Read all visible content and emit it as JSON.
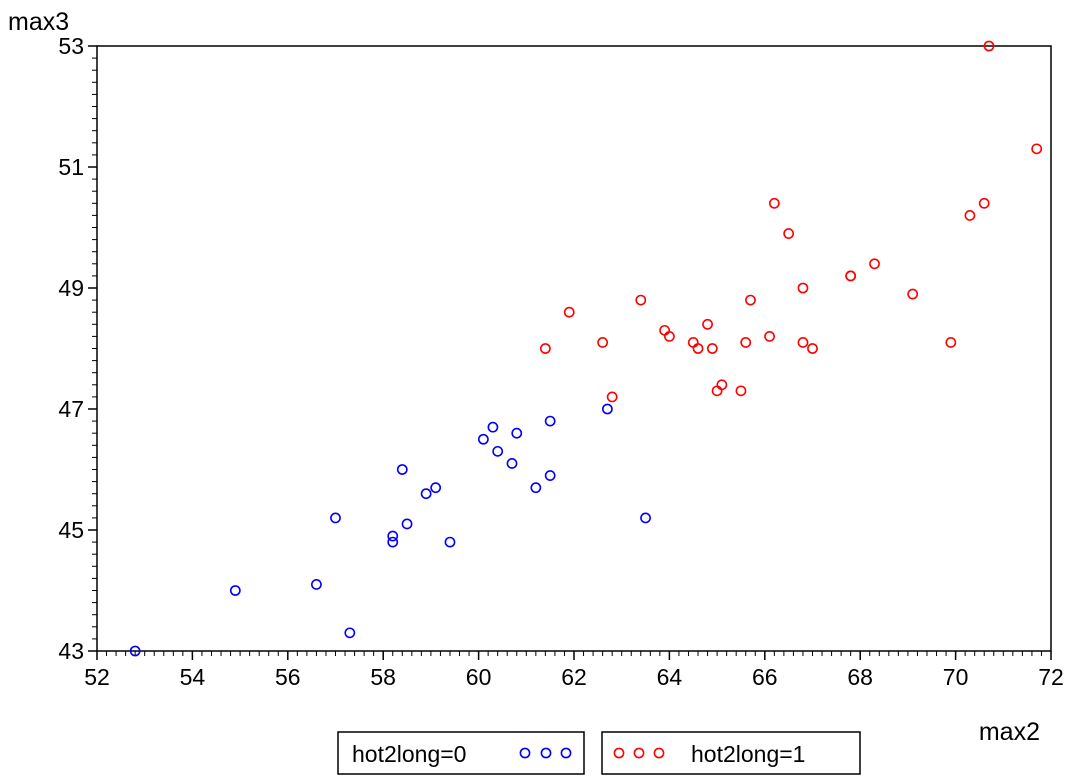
{
  "chart_data": {
    "type": "scatter",
    "xlabel": "max2",
    "ylabel": "max3",
    "xlim": [
      52,
      72
    ],
    "ylim": [
      43,
      53
    ],
    "xticks": [
      52,
      54,
      56,
      58,
      60,
      62,
      64,
      66,
      68,
      70,
      72
    ],
    "yticks": [
      43,
      45,
      47,
      49,
      51,
      53
    ],
    "grid": false,
    "legend_position": "bottom",
    "series": [
      {
        "name": "hot2long=0",
        "color": "#0000ff",
        "marker": "circle",
        "points": [
          [
            52.8,
            43.0
          ],
          [
            54.9,
            44.0
          ],
          [
            56.6,
            44.1
          ],
          [
            57.0,
            45.2
          ],
          [
            57.3,
            43.3
          ],
          [
            58.2,
            44.8
          ],
          [
            58.2,
            44.9
          ],
          [
            58.4,
            46.0
          ],
          [
            58.5,
            45.1
          ],
          [
            58.9,
            45.6
          ],
          [
            59.1,
            45.7
          ],
          [
            59.4,
            44.8
          ],
          [
            60.1,
            46.5
          ],
          [
            60.3,
            46.7
          ],
          [
            60.4,
            46.3
          ],
          [
            60.7,
            46.1
          ],
          [
            60.8,
            46.6
          ],
          [
            61.2,
            45.7
          ],
          [
            61.5,
            45.9
          ],
          [
            61.5,
            46.8
          ],
          [
            62.7,
            47.0
          ],
          [
            63.5,
            45.2
          ]
        ]
      },
      {
        "name": "hot2long=1",
        "color": "#ff0000",
        "marker": "circle",
        "points": [
          [
            61.4,
            48.0
          ],
          [
            61.9,
            48.6
          ],
          [
            62.6,
            48.1
          ],
          [
            62.8,
            47.2
          ],
          [
            63.4,
            48.8
          ],
          [
            63.9,
            48.3
          ],
          [
            64.0,
            48.2
          ],
          [
            64.5,
            48.1
          ],
          [
            64.6,
            48.0
          ],
          [
            64.8,
            48.4
          ],
          [
            64.9,
            48.0
          ],
          [
            65.0,
            47.3
          ],
          [
            65.1,
            47.4
          ],
          [
            65.5,
            47.3
          ],
          [
            65.6,
            48.1
          ],
          [
            65.7,
            48.8
          ],
          [
            66.1,
            48.2
          ],
          [
            66.2,
            50.4
          ],
          [
            66.5,
            49.9
          ],
          [
            66.8,
            49.0
          ],
          [
            66.8,
            48.1
          ],
          [
            67.0,
            48.0
          ],
          [
            67.8,
            49.2
          ],
          [
            67.8,
            49.2
          ],
          [
            68.3,
            49.4
          ],
          [
            69.1,
            48.9
          ],
          [
            69.9,
            48.1
          ],
          [
            70.3,
            50.2
          ],
          [
            70.6,
            50.4
          ],
          [
            70.7,
            53.0
          ],
          [
            71.7,
            51.3
          ]
        ]
      }
    ]
  }
}
